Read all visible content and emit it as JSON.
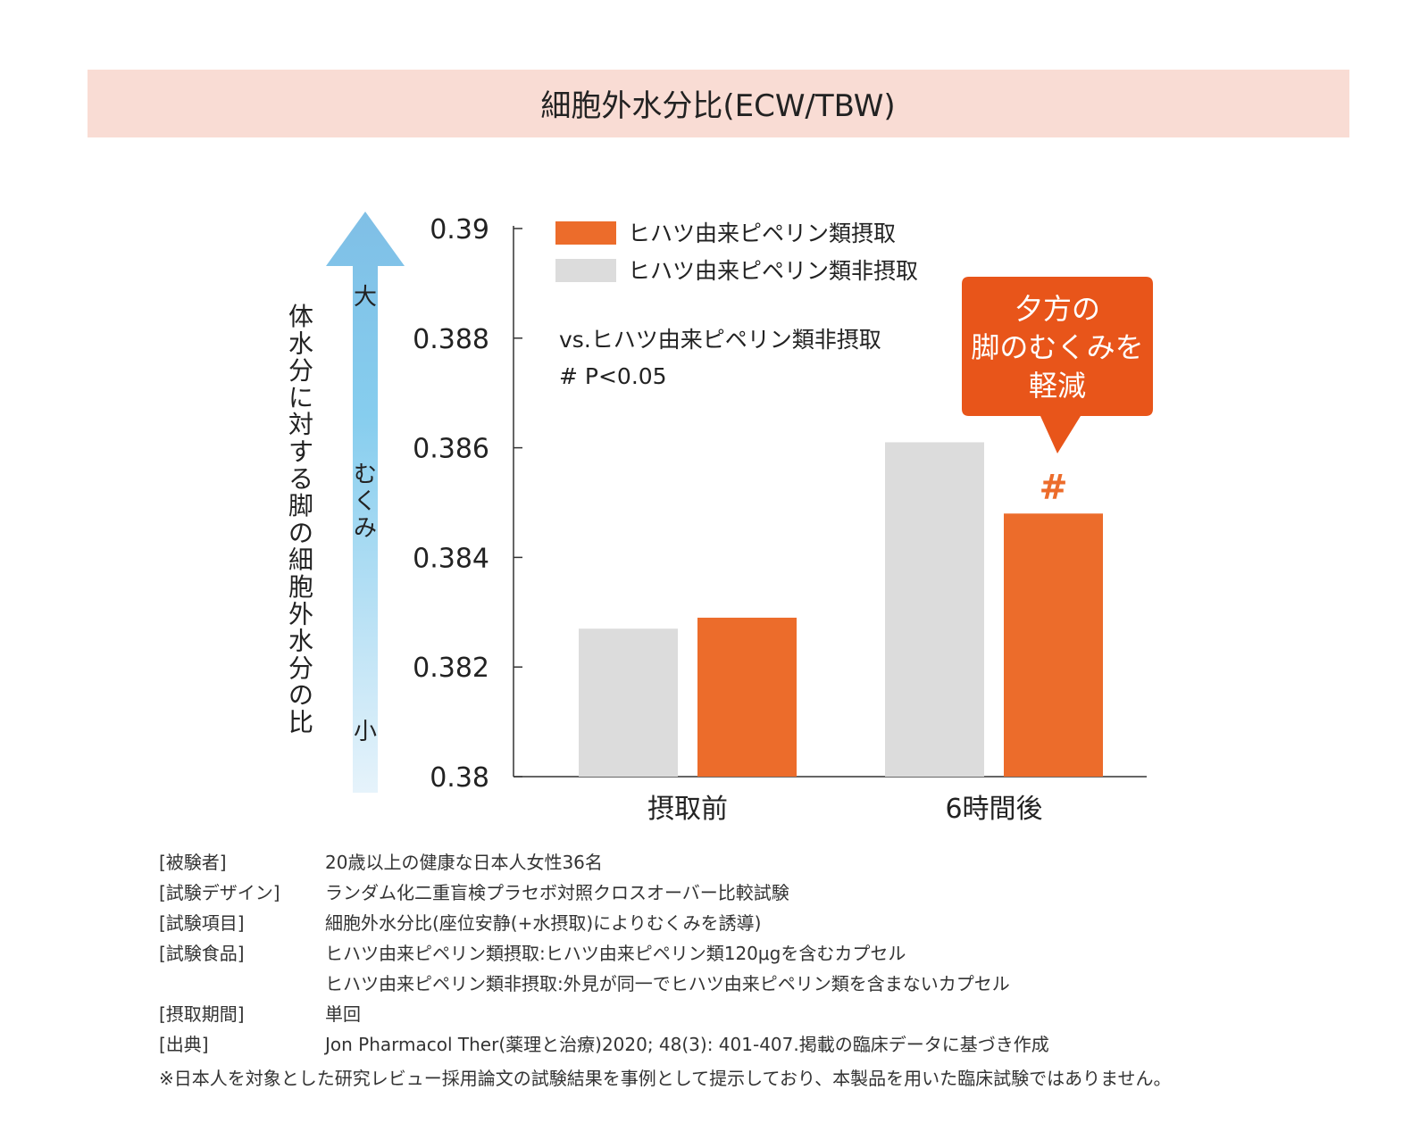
{
  "chart_data": {
    "type": "bar",
    "title": "細胞外水分比(ECW/TBW)",
    "categories": [
      "摂取前",
      "6時間後"
    ],
    "series": [
      {
        "name": "ヒハツ由来ピペリン類非摂取",
        "color": "#dcdcdc",
        "values": [
          0.3827,
          0.3861
        ]
      },
      {
        "name": "ヒハツ由来ピペリン類摂取",
        "color": "#ec6c2b",
        "values": [
          0.3829,
          0.3848
        ]
      }
    ],
    "legend_order": [
      1,
      0
    ],
    "ylim": [
      0.38,
      0.39
    ],
    "yticks": [
      "0.39",
      "0.388",
      "0.386",
      "0.384",
      "0.382",
      "0.38"
    ],
    "ylabel": "体水分に対する脚の細胞外水分の比",
    "arrow": {
      "top": "大",
      "middle": "むくみ",
      "bottom": "小"
    },
    "stat_note": {
      "line1": "vs.ヒハツ由来ピペリン類非摂取",
      "line2": "# P<0.05"
    },
    "significance_marker": "#",
    "callout": {
      "lines": [
        "夕方の",
        "脚のむくみを",
        "軽減"
      ]
    }
  },
  "colors": {
    "title_band": "#f9dcd4",
    "accent": "#ec6c2b",
    "callout": "#e8551a",
    "control": "#dcdcdc"
  },
  "notes": [
    {
      "label": "[被験者]",
      "value": "20歳以上の健康な日本人女性36名"
    },
    {
      "label": "[試験デザイン]",
      "value": "ランダム化二重盲検プラセボ対照クロスオーバー比較試験"
    },
    {
      "label": "[試験項目]",
      "value": "細胞外水分比(座位安静(+水摂取)によりむくみを誘導)"
    },
    {
      "label": "[試験食品]",
      "value": "ヒハツ由来ピペリン類摂取:ヒハツ由来ピペリン類120μgを含むカプセル"
    },
    {
      "label": "",
      "value": "ヒハツ由来ピペリン類非摂取:外見が同一でヒハツ由来ピペリン類を含まないカプセル"
    },
    {
      "label": "[摂取期間]",
      "value": "単回"
    },
    {
      "label": "[出典]",
      "value": "Jon Pharmacol Ther(薬理と治療)2020; 48(3): 401-407.掲載の臨床データに基づき作成"
    }
  ],
  "disclaimer": "※日本人を対象とした研究レビュー採用論文の試験結果を事例として提示しており、本製品を用いた臨床試験ではありません。"
}
